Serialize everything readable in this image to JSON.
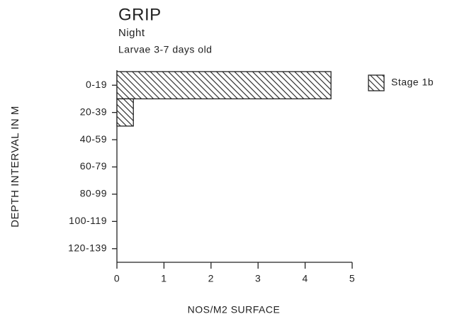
{
  "chart_data": {
    "type": "bar",
    "orientation": "horizontal",
    "title": "GRIP",
    "subtitle": "Night",
    "annotation": "Larvae 3-7 days old",
    "categories": [
      "0-19",
      "20-39",
      "40-59",
      "60-79",
      "80-99",
      "100-119",
      "120-139"
    ],
    "series": [
      {
        "name": "Stage 1b",
        "color": "#222222",
        "values": [
          4.55,
          0.35,
          0,
          0,
          0,
          0,
          0
        ]
      }
    ],
    "xlim": [
      0,
      5
    ],
    "xticks": [
      0,
      1,
      2,
      3,
      4,
      5
    ],
    "xlabel": "NOS/M2 SURFACE",
    "ylabel": "DEPTH INTERVAL IN M",
    "hatch": true,
    "legend": "right",
    "grid": false
  }
}
